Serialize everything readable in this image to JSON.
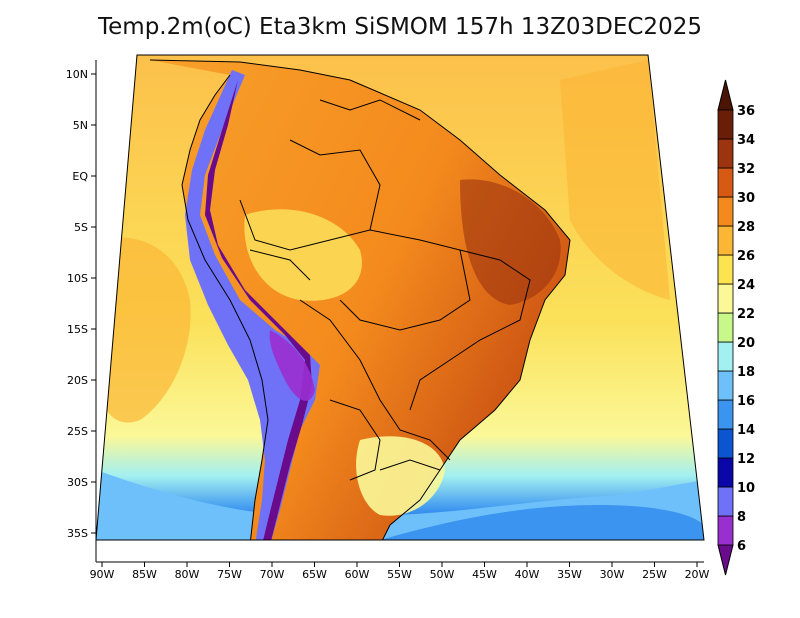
{
  "title": "Temp.2m(oC) Eta3km SiSMOM 157h 13Z03DEC2025",
  "map": {
    "lon_ticks": [
      "90W",
      "85W",
      "80W",
      "75W",
      "70W",
      "65W",
      "60W",
      "55W",
      "50W",
      "45W",
      "40W",
      "35W",
      "30W",
      "25W",
      "20W"
    ],
    "lat_ticks": [
      "10N",
      "5N",
      "EQ",
      "5S",
      "10S",
      "15S",
      "20S",
      "25S",
      "30S",
      "35S"
    ],
    "lon_range": [
      -91,
      -20
    ],
    "lat_range": [
      -38,
      12
    ]
  },
  "colorbar": {
    "labels": [
      "6",
      "8",
      "10",
      "12",
      "14",
      "16",
      "18",
      "20",
      "22",
      "24",
      "26",
      "28",
      "30",
      "32",
      "34",
      "36"
    ],
    "colors": [
      "#6a0a8c",
      "#9a2fd0",
      "#6f72f6",
      "#0a06a8",
      "#0b55d0",
      "#3b94f0",
      "#6ec0fb",
      "#a3f0f0",
      "#c8f78a",
      "#fbf898",
      "#fce451",
      "#fbb636",
      "#f48a1d",
      "#d65a14",
      "#9c340f",
      "#6a1e08",
      "#4a1505"
    ]
  }
}
